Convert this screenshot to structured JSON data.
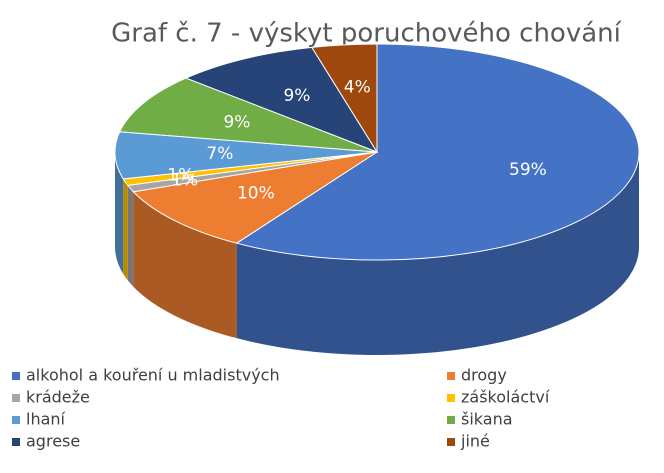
{
  "chart_data": {
    "type": "pie",
    "title": "Graf č. 7 - výskyt poruchového chování",
    "categories": [
      "alkohol a kouření u mladistvých",
      "drogy",
      "krádeže",
      "záškoláctví",
      "lhaní",
      "šikana",
      "agrese",
      "jiné"
    ],
    "values": [
      59,
      10,
      1,
      1,
      7,
      9,
      9,
      4
    ],
    "value_labels": [
      "59%",
      "10%",
      "1%",
      "1%",
      "7%",
      "9%",
      "9%",
      "4%"
    ],
    "colors": [
      "#4472c4",
      "#ed7d31",
      "#a5a5a5",
      "#ffc000",
      "#5b9bd5",
      "#70ad47",
      "#264478",
      "#9e480e"
    ],
    "legend": "bottom"
  }
}
